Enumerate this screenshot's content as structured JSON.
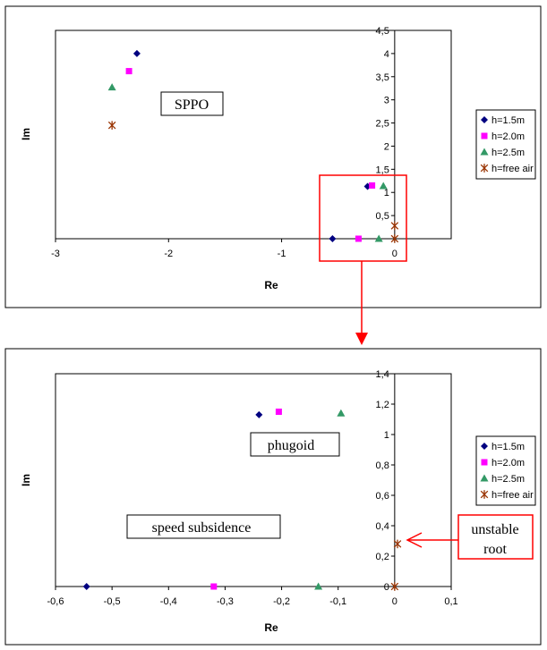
{
  "chart_data": [
    {
      "type": "scatter",
      "xlabel": "Re",
      "ylabel": "Im",
      "xlim": [
        -3,
        0.5
      ],
      "ylim": [
        0,
        4.5
      ],
      "x_ticks": [
        -3,
        -2,
        -1,
        0
      ],
      "y_ticks": [
        0.5,
        1,
        1.5,
        2,
        2.5,
        3,
        3.5,
        4,
        4.5
      ],
      "x_tick_labels": [
        "-3",
        "-2",
        "-1",
        "0"
      ],
      "y_tick_labels": [
        "0,5",
        "1",
        "1,5",
        "2",
        "2,5",
        "3",
        "3,5",
        "4",
        "4,5"
      ],
      "grid": false,
      "legend_position": "right",
      "series": [
        {
          "name": "h=1.5m",
          "color": "#000080",
          "marker": "diamond",
          "points": [
            [
              -2.28,
              4.0
            ],
            [
              -0.55,
              0.0
            ],
            [
              -0.24,
              1.13
            ]
          ]
        },
        {
          "name": "h=2.0m",
          "color": "#ff00ff",
          "marker": "square",
          "points": [
            [
              -2.35,
              3.62
            ],
            [
              -0.32,
              0.0
            ],
            [
              -0.2,
              1.15
            ]
          ]
        },
        {
          "name": "h=2.5m",
          "color": "#339966",
          "marker": "triangle",
          "points": [
            [
              -2.5,
              3.27
            ],
            [
              -0.14,
              0.0
            ],
            [
              -0.1,
              1.14
            ]
          ]
        },
        {
          "name": "h=free air",
          "color": "#993300",
          "marker": "star",
          "points": [
            [
              -2.5,
              2.45
            ],
            [
              0.0,
              0.0
            ],
            [
              0.0,
              0.28
            ]
          ]
        }
      ],
      "annotations": [
        {
          "text": "SPPO"
        }
      ]
    },
    {
      "type": "scatter",
      "xlabel": "Re",
      "ylabel": "Im",
      "xlim": [
        -0.6,
        0.1
      ],
      "ylim": [
        0,
        1.4
      ],
      "x_ticks": [
        -0.6,
        -0.5,
        -0.4,
        -0.3,
        -0.2,
        -0.1,
        0,
        0.1
      ],
      "y_ticks": [
        0,
        0.2,
        0.4,
        0.6,
        0.8,
        1,
        1.2,
        1.4
      ],
      "x_tick_labels": [
        "-0,6",
        "-0,5",
        "-0,4",
        "-0,3",
        "-0,2",
        "-0,1",
        "0",
        "0,1"
      ],
      "y_tick_labels": [
        "0",
        "0,2",
        "0,4",
        "0,6",
        "0,8",
        "1",
        "1,2",
        "1,4"
      ],
      "grid": false,
      "legend_position": "right",
      "series": [
        {
          "name": "h=1.5m",
          "color": "#000080",
          "marker": "diamond",
          "points": [
            [
              -0.545,
              0.0
            ],
            [
              -0.24,
              1.13
            ]
          ]
        },
        {
          "name": "h=2.0m",
          "color": "#ff00ff",
          "marker": "square",
          "points": [
            [
              -0.32,
              0.0
            ],
            [
              -0.205,
              1.15
            ]
          ]
        },
        {
          "name": "h=2.5m",
          "color": "#339966",
          "marker": "triangle",
          "points": [
            [
              -0.135,
              0.0
            ],
            [
              -0.095,
              1.14
            ]
          ]
        },
        {
          "name": "h=free air",
          "color": "#993300",
          "marker": "star",
          "points": [
            [
              0.0,
              0.0
            ],
            [
              0.005,
              0.28
            ]
          ]
        }
      ],
      "annotations": [
        {
          "text": "phugoid"
        },
        {
          "text": "speed subsidence"
        },
        {
          "text_lines": [
            "unstable",
            "root"
          ]
        }
      ]
    }
  ]
}
